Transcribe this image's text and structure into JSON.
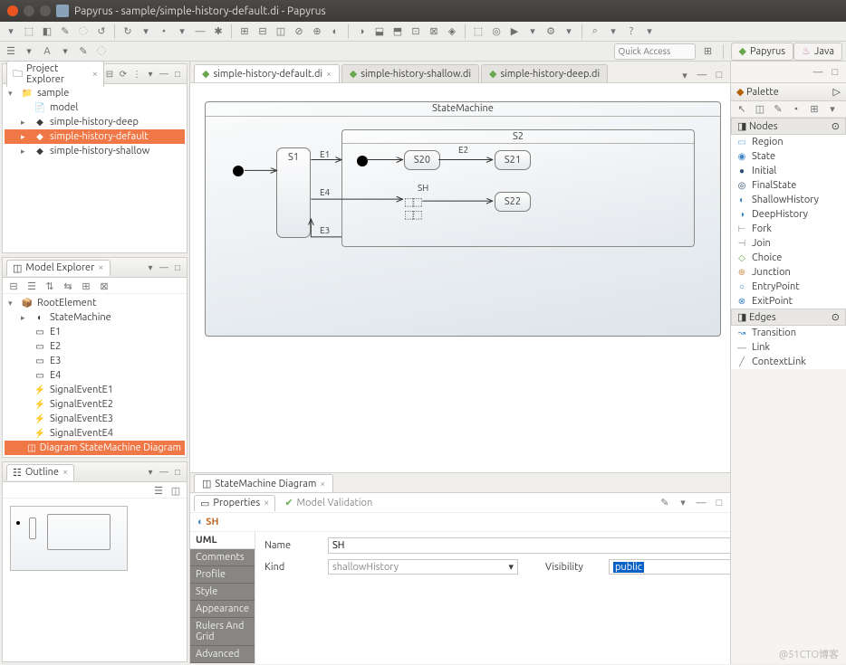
{
  "window": {
    "title": "Papyrus - sample/simple-history-default.di - Papyrus"
  },
  "quick_access": {
    "placeholder": "Quick Access"
  },
  "perspectives": [
    {
      "name": "Papyrus",
      "icon": "◆",
      "color": "#6aa84f"
    },
    {
      "name": "Java",
      "icon": "♨",
      "color": "#c27ba0"
    }
  ],
  "main_toolbar_icons": [
    "▾",
    "⬚",
    "◧",
    "✎",
    "◌",
    "↺",
    "↻",
    "▾",
    "•",
    "▾",
    "—",
    "✱",
    "⊞",
    "⊟",
    "◫",
    "⊘",
    "⊕",
    "◐",
    "◑",
    "⬓",
    "⬒",
    "⊡",
    "⊠",
    "◈",
    "⬚",
    "◎",
    "▶",
    "▾",
    "⚙",
    "▾",
    "⌕",
    "▾",
    "?",
    "▾"
  ],
  "second_toolbar_icons": [
    "☰",
    "▾",
    "A",
    "▾",
    "✎",
    "◌"
  ],
  "project_explorer": {
    "title": "Project Explorer",
    "toolbar": [
      "⊟",
      "⟳",
      "⋮",
      "▾",
      "—",
      "□"
    ],
    "items": [
      {
        "label": "sample",
        "icon": "📁",
        "twisty": "▾"
      },
      {
        "label": "model",
        "icon": "📄",
        "indent": 1
      },
      {
        "label": "simple-history-deep",
        "icon": "◆",
        "indent": 1,
        "twisty": "▸"
      },
      {
        "label": "simple-history-default",
        "icon": "◆",
        "indent": 1,
        "twisty": "▸",
        "selected": true
      },
      {
        "label": "simple-history-shallow",
        "icon": "◆",
        "indent": 1,
        "twisty": "▸"
      }
    ]
  },
  "model_explorer": {
    "title": "Model Explorer",
    "toolbar": [
      "▾",
      "—",
      "□"
    ],
    "mini_toolbar": [
      "⊟",
      "☰",
      "⇅",
      "⇆",
      "⊞",
      "⊠"
    ],
    "items": [
      {
        "label": "RootElement",
        "icon": "📦",
        "twisty": "▾"
      },
      {
        "label": "StateMachine",
        "icon": "◐",
        "indent": 1,
        "twisty": "▸"
      },
      {
        "label": "E1",
        "icon": "▭",
        "indent": 1
      },
      {
        "label": "E2",
        "icon": "▭",
        "indent": 1
      },
      {
        "label": "E3",
        "icon": "▭",
        "indent": 1
      },
      {
        "label": "E4",
        "icon": "▭",
        "indent": 1
      },
      {
        "label": "SignalEventE1",
        "icon": "⚡",
        "indent": 1
      },
      {
        "label": "SignalEventE2",
        "icon": "⚡",
        "indent": 1
      },
      {
        "label": "SignalEventE3",
        "icon": "⚡",
        "indent": 1
      },
      {
        "label": "SignalEventE4",
        "icon": "⚡",
        "indent": 1
      },
      {
        "label": "Diagram StateMachine Diagram",
        "icon": "◫",
        "indent": 1,
        "selected": true
      }
    ]
  },
  "outline": {
    "title": "Outline",
    "toolbar": [
      "▾",
      "—",
      "□"
    ],
    "mode_icons": [
      "☰",
      "◫"
    ]
  },
  "editor": {
    "tabs": [
      {
        "label": "simple-history-default.di",
        "active": true
      },
      {
        "label": "simple-history-shallow.di"
      },
      {
        "label": "simple-history-deep.di"
      }
    ],
    "toolbar": [
      "▾",
      "—",
      "□"
    ],
    "bottom_tab": "StateMachine Diagram",
    "diagram": {
      "frame_title": "StateMachine",
      "s1": "S1",
      "s2_region": "S2",
      "s20": "S20",
      "s21": "S21",
      "s22": "S22",
      "sh": "SH",
      "e1": "E1",
      "e2": "E2",
      "e3": "E3",
      "e4": "E4"
    }
  },
  "properties": {
    "tab1": "Properties",
    "tab2": "Model Validation",
    "toolbar": [
      "✎",
      "▾",
      "—",
      "□"
    ],
    "element_title": "SH",
    "uml_header": "UML",
    "uml_rows": [
      "Comments",
      "Profile",
      "Style",
      "Appearance",
      "Rulers And Grid",
      "Advanced"
    ],
    "name_label": "Name",
    "name_value": "SH",
    "kind_label": "Kind",
    "kind_value": "shallowHistory",
    "visibility_label": "Visibility",
    "visibility_value": "public"
  },
  "palette": {
    "title": "Palette",
    "toolbar_icons": [
      "↖",
      "◫",
      "✎",
      "•",
      "⊞",
      "▾"
    ],
    "nodes_title": "Nodes",
    "nodes": [
      {
        "label": "Region",
        "icon": "▭",
        "color": "#6fa8dc"
      },
      {
        "label": "State",
        "icon": "◉",
        "color": "#3d85c6"
      },
      {
        "label": "Initial",
        "icon": "●",
        "color": "#2b4e72"
      },
      {
        "label": "FinalState",
        "icon": "◎",
        "color": "#2b4e72"
      },
      {
        "label": "ShallowHistory",
        "icon": "◐",
        "color": "#3d85c6"
      },
      {
        "label": "DeepHistory",
        "icon": "◑",
        "color": "#3d85c6"
      },
      {
        "label": "Fork",
        "icon": "⊢",
        "color": "#888"
      },
      {
        "label": "Join",
        "icon": "⊣",
        "color": "#888"
      },
      {
        "label": "Choice",
        "icon": "◇",
        "color": "#6aa84f"
      },
      {
        "label": "Junction",
        "icon": "⊕",
        "color": "#cc8f52"
      },
      {
        "label": "EntryPoint",
        "icon": "○",
        "color": "#3d85c6"
      },
      {
        "label": "ExitPoint",
        "icon": "⊗",
        "color": "#3d85c6"
      }
    ],
    "edges_title": "Edges",
    "edges": [
      {
        "label": "Transition",
        "icon": "↝",
        "color": "#3d85c6"
      },
      {
        "label": "Link",
        "icon": "—",
        "color": "#888"
      },
      {
        "label": "ContextLink",
        "icon": "╱",
        "color": "#888"
      }
    ]
  },
  "watermark": "@51CTO博客"
}
